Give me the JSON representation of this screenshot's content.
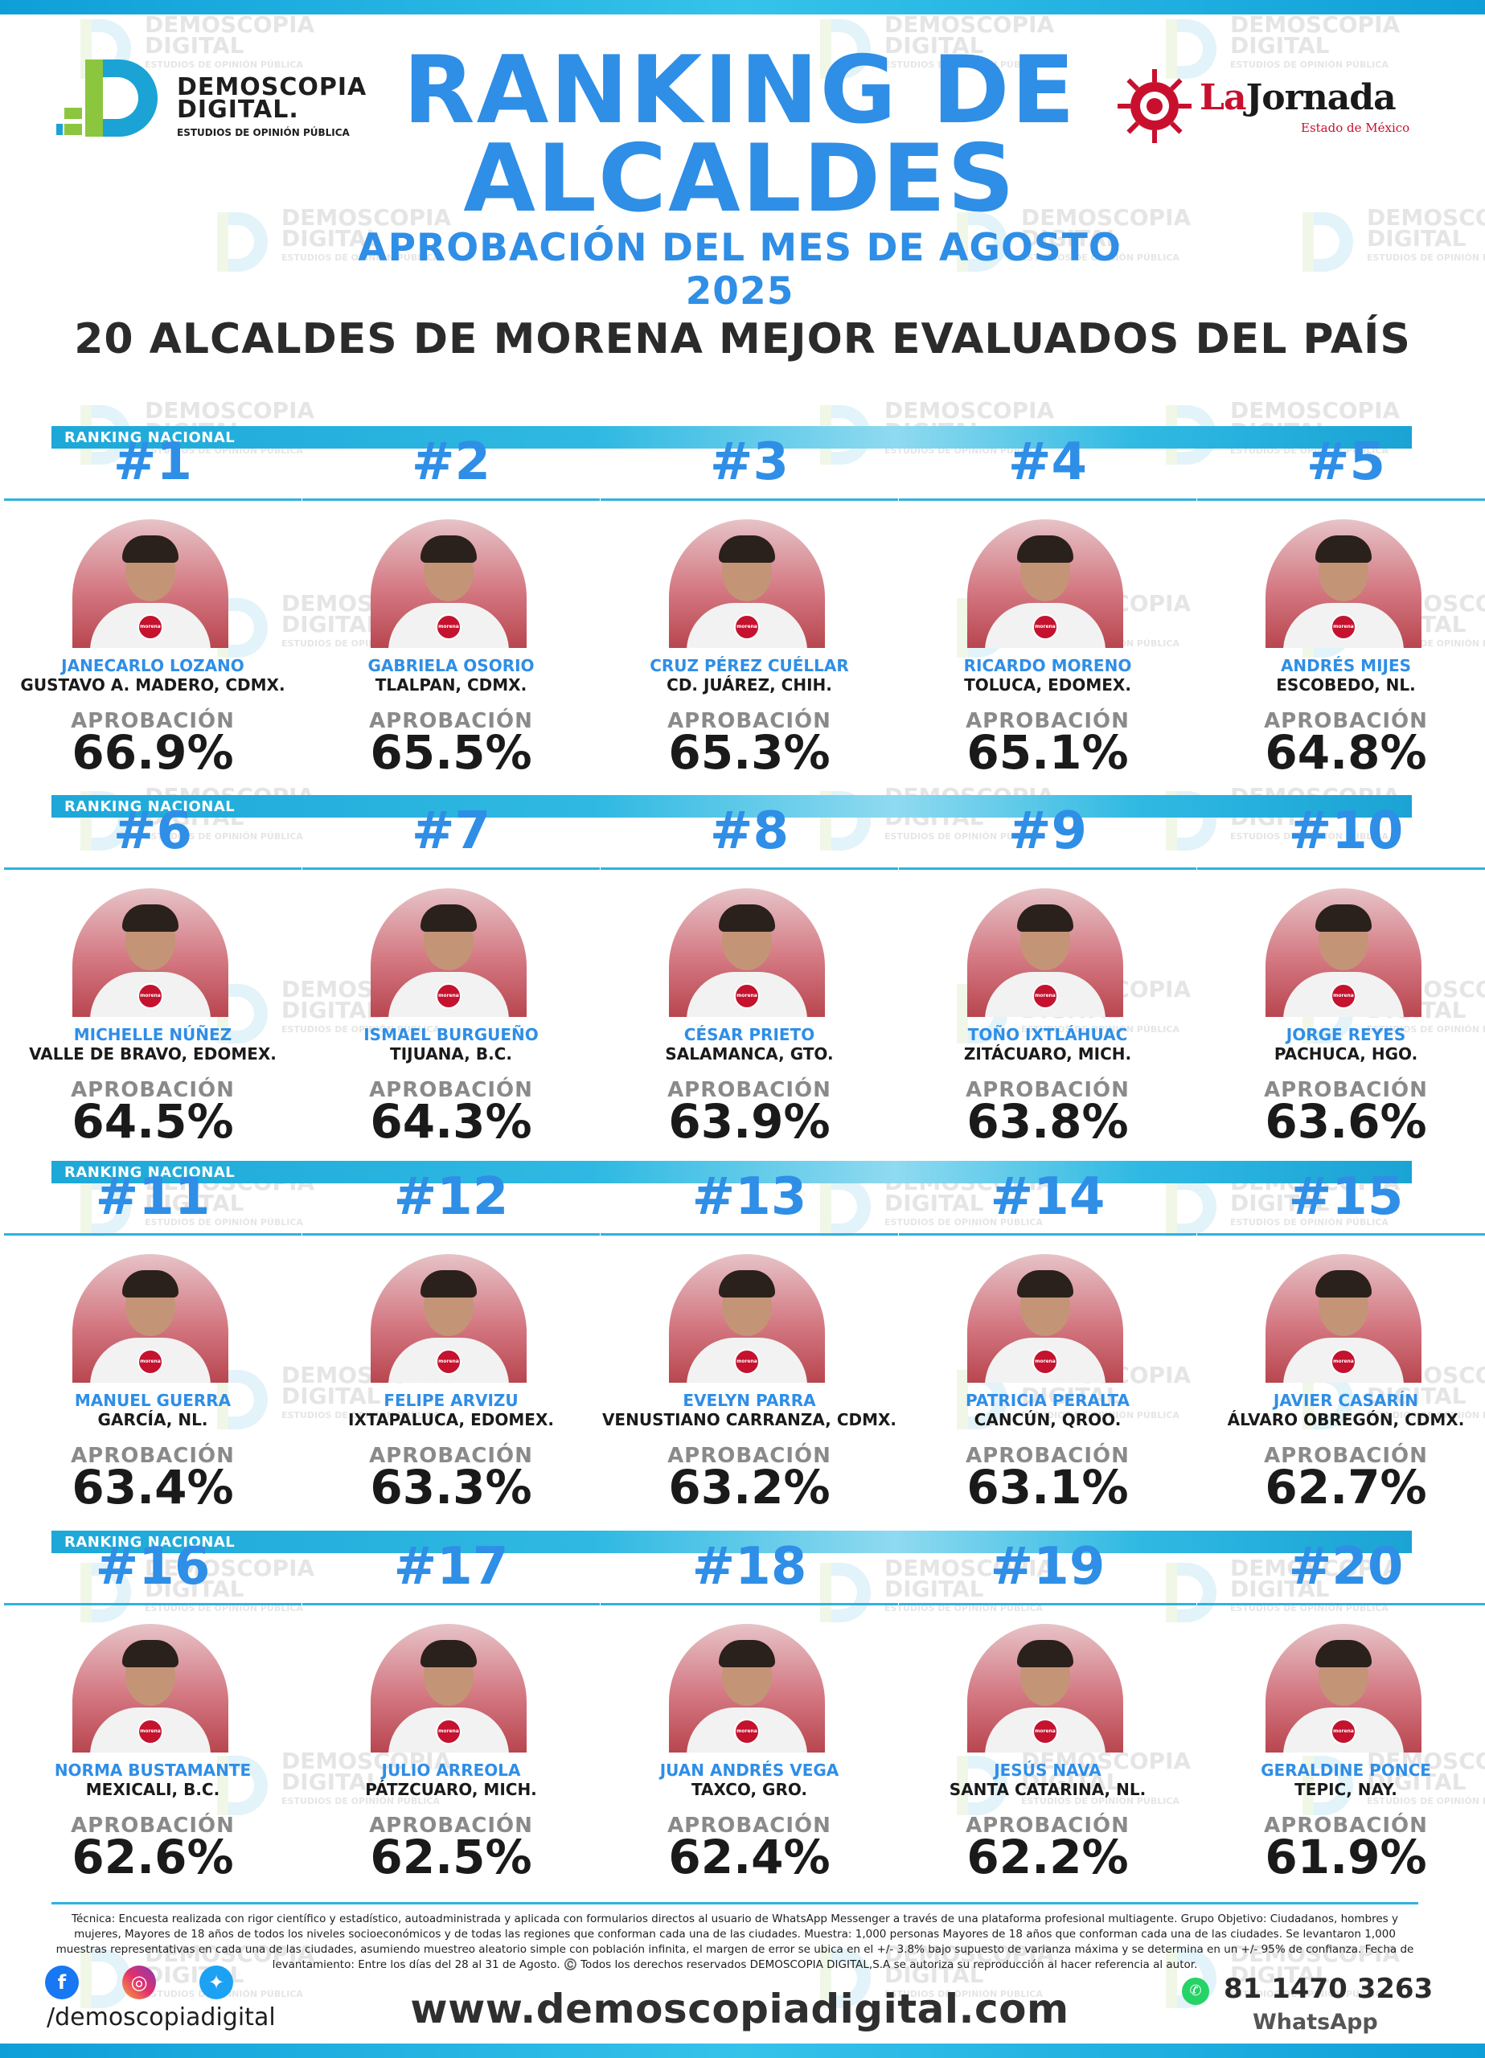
{
  "header": {
    "logo_left": {
      "line1": "DEMOSCOPIA",
      "line2": "DIGITAL.",
      "line3": "ESTUDIOS DE OPINIÓN PÚBLICA"
    },
    "title": "RANKING DE ALCALDES",
    "subtitle": "APROBACIÓN DEL MES DE AGOSTO 2025",
    "logo_right": {
      "la": "La",
      "name": "Jornada",
      "sub": "Estado de México"
    },
    "heading": "20 ALCALDES DE MORENA MEJOR EVALUADOS DEL PAÍS"
  },
  "watermark": {
    "line1": "DEMOSCOPIA",
    "line2": "DIGITAL",
    "line3": "ESTUDIOS DE OPINIÓN PÚBLICA"
  },
  "band_label": "RANKING NACIONAL",
  "approval_label": "APROBACIÓN",
  "badge_text": "morena",
  "mayors": [
    {
      "rank": "#1",
      "name": "JANECARLO LOZANO",
      "place": "GUSTAVO A. MADERO, CDMX.",
      "approval": "66.9%"
    },
    {
      "rank": "#2",
      "name": "GABRIELA OSORIO",
      "place": "TLALPAN, CDMX.",
      "approval": "65.5%"
    },
    {
      "rank": "#3",
      "name": "CRUZ PÉREZ CUÉLLAR",
      "place": "CD. JUÁREZ, CHIH.",
      "approval": "65.3%"
    },
    {
      "rank": "#4",
      "name": "RICARDO MORENO",
      "place": "TOLUCA, EDOMEX.",
      "approval": "65.1%"
    },
    {
      "rank": "#5",
      "name": "ANDRÉS MIJES",
      "place": "ESCOBEDO, NL.",
      "approval": "64.8%"
    },
    {
      "rank": "#6",
      "name": "MICHELLE NÚÑEZ",
      "place": "VALLE DE BRAVO, EDOMEX.",
      "approval": "64.5%"
    },
    {
      "rank": "#7",
      "name": "ISMAEL BURGUEÑO",
      "place": "TIJUANA, B.C.",
      "approval": "64.3%"
    },
    {
      "rank": "#8",
      "name": "CÉSAR PRIETO",
      "place": "SALAMANCA, GTO.",
      "approval": "63.9%"
    },
    {
      "rank": "#9",
      "name": "TOÑO IXTLÁHUAC",
      "place": "ZITÁCUARO, MICH.",
      "approval": "63.8%"
    },
    {
      "rank": "#10",
      "name": "JORGE REYES",
      "place": "PACHUCA, HGO.",
      "approval": "63.6%"
    },
    {
      "rank": "#11",
      "name": "MANUEL GUERRA",
      "place": "GARCÍA, NL.",
      "approval": "63.4%"
    },
    {
      "rank": "#12",
      "name": "FELIPE ARVIZU",
      "place": "IXTAPALUCA, EDOMEX.",
      "approval": "63.3%"
    },
    {
      "rank": "#13",
      "name": "EVELYN PARRA",
      "place": "VENUSTIANO CARRANZA, CDMX.",
      "approval": "63.2%"
    },
    {
      "rank": "#14",
      "name": "PATRICIA PERALTA",
      "place": "CANCÚN, QROO.",
      "approval": "63.1%"
    },
    {
      "rank": "#15",
      "name": "JAVIER CASARÍN",
      "place": "ÁLVARO OBREGÓN, CDMX.",
      "approval": "62.7%"
    },
    {
      "rank": "#16",
      "name": "NORMA BUSTAMANTE",
      "place": "MEXICALI, B.C.",
      "approval": "62.6%"
    },
    {
      "rank": "#17",
      "name": "JULIO ARREOLA",
      "place": "PÁTZCUARO, MICH.",
      "approval": "62.5%"
    },
    {
      "rank": "#18",
      "name": "JUAN ANDRÉS VEGA",
      "place": "TAXCO, GRO.",
      "approval": "62.4%"
    },
    {
      "rank": "#19",
      "name": "JESÚS NAVA",
      "place": "SANTA CATARINA, NL.",
      "approval": "62.2%"
    },
    {
      "rank": "#20",
      "name": "GERALDINE PONCE",
      "place": "TEPIC, NAY.",
      "approval": "61.9%"
    }
  ],
  "footer": {
    "tecnica": "Técnica: Encuesta realizada con rigor científico y estadístico, autoadministrada y aplicada con formularios directos al usuario de WhatsApp Messenger a través de una plataforma profesional multiagente. Grupo Objetivo: Ciudadanos, hombres y mujeres, Mayores de 18 años de todos los niveles socioeconómicos y de todas las regiones que conforman cada una de las ciudades. Muestra: 1,000 personas Mayores de 18 años que conforman cada una de las ciudades. Se levantaron 1,000 muestras representativas en cada una de las ciudades, asumiendo muestreo aleatorio simple con población infinita, el margen de error se ubica en el +/- 3.8% bajo supuesto de varianza máxima y se determina en un +/- 95% de confianza. Fecha de levantamiento: Entre los días del 28 al 31 de Agosto. ©️ Todos los derechos reservados DEMOSCOPIA DIGITAL,S.A se autoriza su reproducción al hacer referencia al autor.",
    "handle": "/demoscopiadigital",
    "website": "www.demoscopiadigital.com",
    "phone": "81 1470 3263",
    "whatsapp_label": "WhatsApp",
    "social_icons": [
      "facebook-icon",
      "instagram-icon",
      "twitter-icon"
    ]
  },
  "colors": {
    "accent_blue": "#2f8ee6",
    "band_cyan": "#2fb9e2",
    "morena_red": "#c4122f",
    "photo_bg": "#d47882"
  }
}
